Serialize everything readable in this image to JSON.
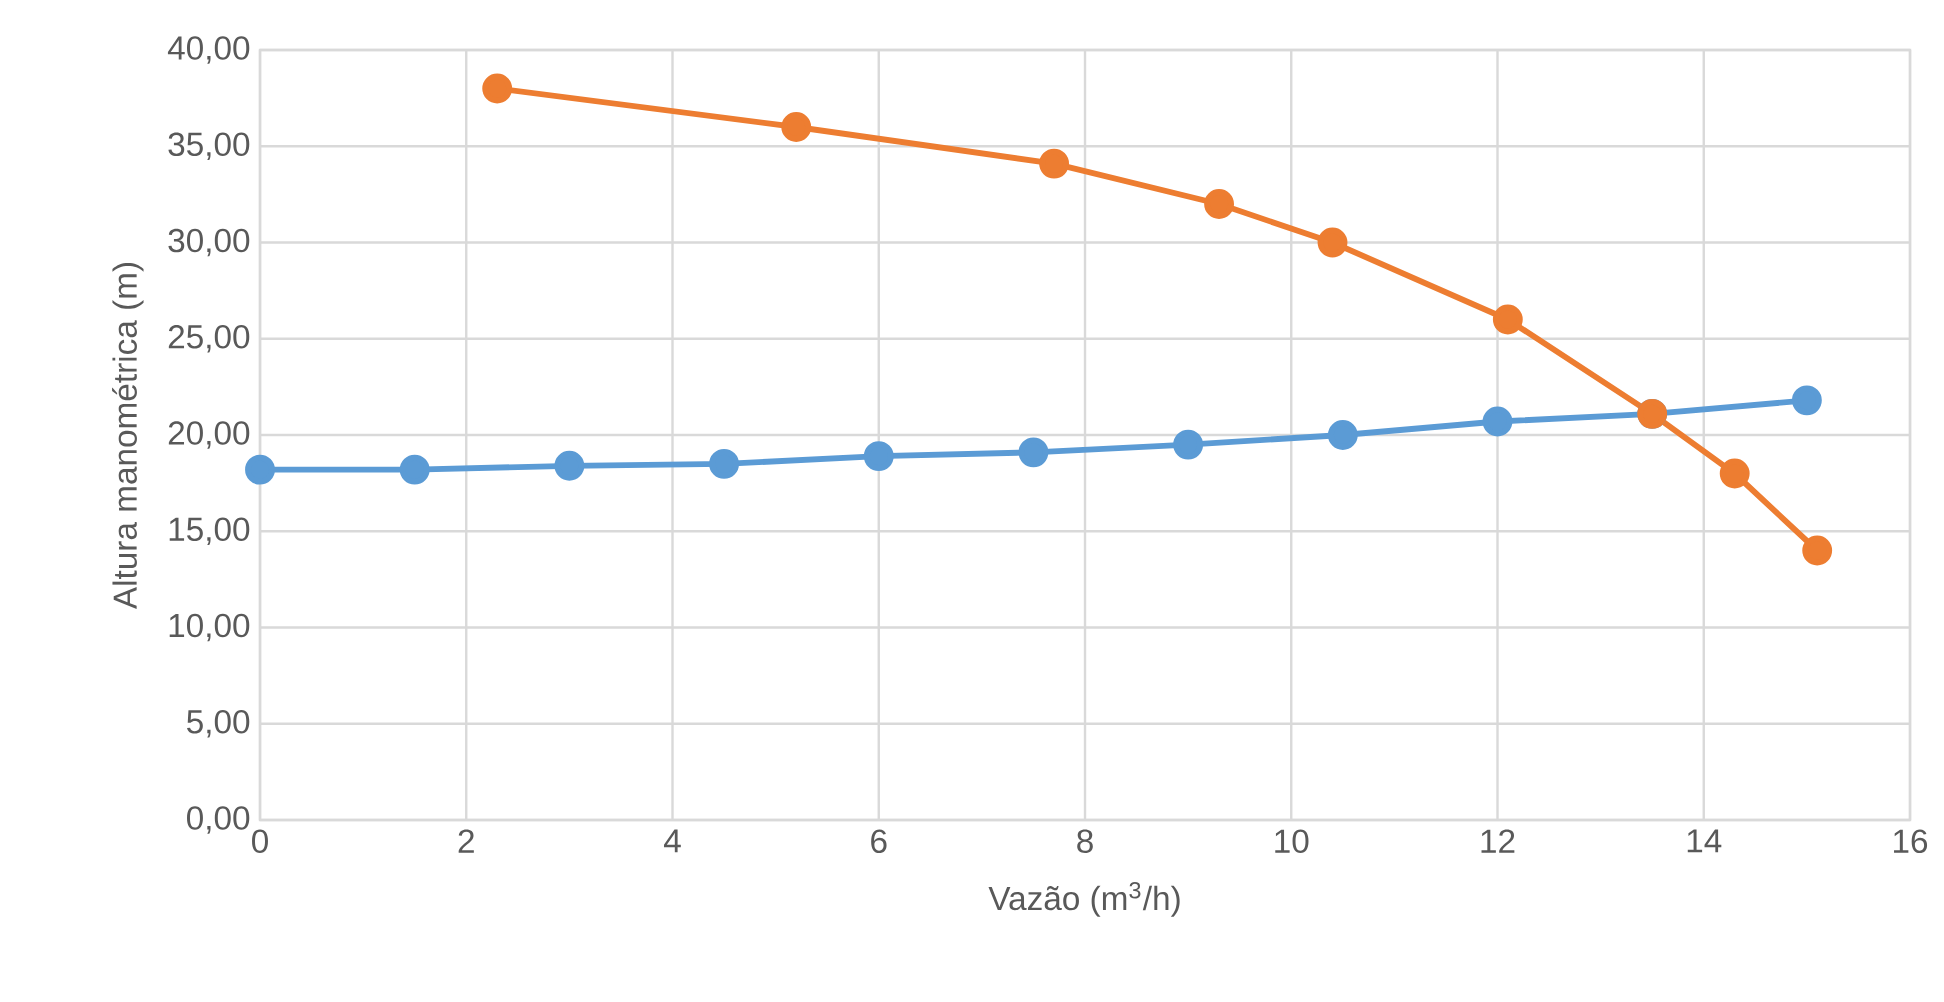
{
  "chart_data": {
    "type": "line",
    "xlabel": "Vazão (m$^{3}$/h)",
    "ylabel": "Altura manométrica (m)",
    "series": [
      {
        "color": "#5b9bd5",
        "x": [
          0,
          1.5,
          3,
          4.5,
          6,
          7.5,
          9,
          10.5,
          12,
          13.5,
          15
        ],
        "values": [
          18.2,
          18.2,
          18.4,
          18.5,
          18.9,
          19.1,
          19.5,
          20.0,
          20.7,
          21.1,
          21.8
        ]
      },
      {
        "color": "#ed7d31",
        "x": [
          2.3,
          5.2,
          7.7,
          9.3,
          10.4,
          12.1,
          13.5,
          14.3,
          15.1
        ],
        "values": [
          38.0,
          36.0,
          34.1,
          32.0,
          30.0,
          26.0,
          21.1,
          18.0,
          14.0
        ]
      }
    ],
    "xlim": [
      0,
      16
    ],
    "xticks": [
      0,
      2,
      4,
      6,
      8,
      10,
      12,
      14,
      16
    ],
    "ylim": [
      0,
      40
    ],
    "yticks": [
      {
        "value": 0,
        "label": "0,00"
      },
      {
        "value": 5,
        "label": "5,00"
      },
      {
        "value": 10,
        "label": "10,00"
      },
      {
        "value": 15,
        "label": "15,00"
      },
      {
        "value": 20,
        "label": "20,00"
      },
      {
        "value": 25,
        "label": "25,00"
      },
      {
        "value": 30,
        "label": "30,00"
      },
      {
        "value": 35,
        "label": "35,00"
      },
      {
        "value": 40,
        "label": "40,00"
      }
    ],
    "grid": true,
    "marker": "circle",
    "line_style": "solid"
  }
}
